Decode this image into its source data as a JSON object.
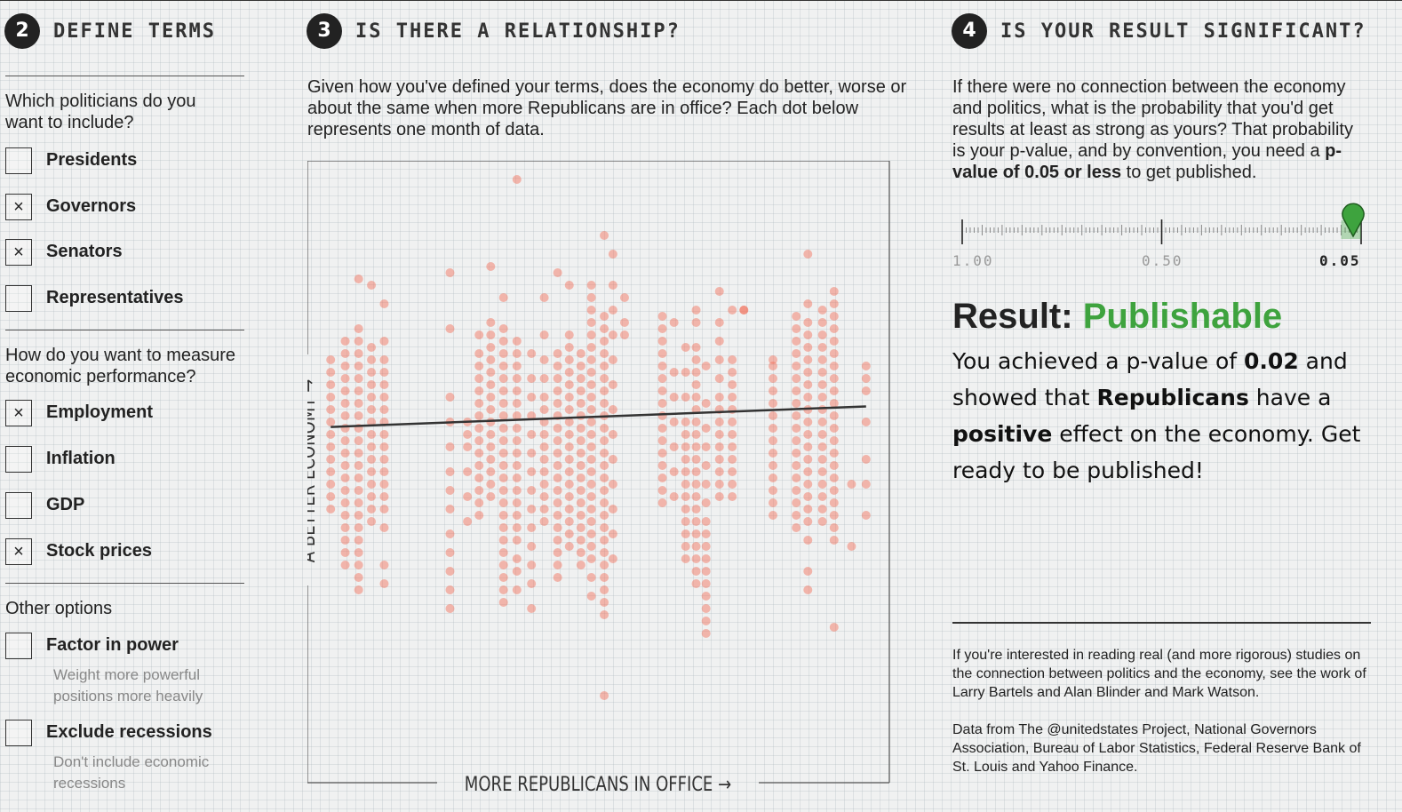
{
  "section2": {
    "number": "2",
    "title": "DEFINE TERMS",
    "q_politicians": "Which politicians do you want to include?",
    "politicians": [
      {
        "label": "Presidents",
        "checked": false
      },
      {
        "label": "Governors",
        "checked": true
      },
      {
        "label": "Senators",
        "checked": true
      },
      {
        "label": "Representatives",
        "checked": false
      }
    ],
    "q_economy": "How do you want to measure economic performance?",
    "measures": [
      {
        "label": "Employment",
        "checked": true
      },
      {
        "label": "Inflation",
        "checked": false
      },
      {
        "label": "GDP",
        "checked": false
      },
      {
        "label": "Stock prices",
        "checked": true
      }
    ],
    "q_other": "Other options",
    "factor_power": {
      "label": "Factor in power",
      "checked": false,
      "desc": "Weight more powerful positions more heavily"
    },
    "exclude_recessions": {
      "label": "Exclude recessions",
      "checked": false,
      "desc": "Don't include economic recessions"
    },
    "check_mark": "×"
  },
  "section3": {
    "number": "3",
    "title": "IS THERE A RELATIONSHIP?",
    "intro": "Given how you've defined your terms, does the economy do better, worse or about the same when more Republicans are in office? Each dot below represents one month of data."
  },
  "section4": {
    "number": "4",
    "title": "IS YOUR RESULT SIGNIFICANT?",
    "intro_before": "If there were no connection between the economy and politics, what is the probability that you'd get results at least as strong as yours? That probability is your p-value, and by convention, you need a ",
    "intro_bold": "p-value of 0.05 or less",
    "intro_after": " to get published.",
    "scale_labels": [
      "1.00",
      "0.50",
      "0.05"
    ],
    "p_value": 0.02,
    "result_prefix": "Result: ",
    "result_word": "Publishable",
    "body_1": "You achieved a p-value of ",
    "body_pval": "0.02",
    "body_2": " and showed that ",
    "body_party": "Republicans",
    "body_3": " have a ",
    "body_effect": "positive",
    "body_4": " effect on the economy. Get ready to be published!",
    "note": "If you're interested in reading real (and more rigorous) studies on the connection between politics and the economy, see the work of Larry Bartels and Alan Blinder and Mark Watson.",
    "sources": "Data from The @unitedstates Project, National Governors Association, Bureau of Labor Statistics, Federal Reserve Bank of St. Louis and Yahoo Finance."
  },
  "colors": {
    "dot": "#f26b55",
    "accent_green": "#3ea33e",
    "text": "#222222"
  },
  "chart_data": {
    "type": "scatter",
    "xlabel": "MORE REPUBLICANS IN OFFICE →",
    "ylabel": "A BETTER ECONOMY →",
    "xlim": [
      0,
      100
    ],
    "ylim": [
      0,
      100
    ],
    "trend": {
      "x": [
        4,
        96
      ],
      "y": [
        57.2,
        60.5
      ]
    },
    "columns": [
      {
        "x": 4,
        "y": [
          68,
          66,
          64,
          62,
          60,
          58,
          56,
          54,
          52,
          50,
          48,
          46,
          44
        ]
      },
      {
        "x": 6.5,
        "y": [
          71,
          69,
          67,
          65,
          63,
          61,
          59,
          57,
          55,
          53,
          51,
          49,
          47,
          45,
          43,
          41,
          39,
          37,
          35
        ]
      },
      {
        "x": 8.8,
        "y": [
          81,
          73,
          71,
          69,
          67,
          65,
          63,
          61,
          59,
          57,
          55,
          53,
          51,
          49,
          47,
          45,
          43,
          41,
          39,
          37,
          35,
          33,
          31
        ]
      },
      {
        "x": 11,
        "y": [
          80,
          70,
          68,
          66,
          64,
          62,
          60,
          58,
          56,
          54,
          52,
          50,
          48,
          46,
          44,
          42
        ]
      },
      {
        "x": 13.2,
        "y": [
          77,
          71,
          68,
          66,
          64,
          62,
          60,
          58,
          56,
          54,
          52,
          50,
          48,
          46,
          44,
          41,
          35,
          32
        ]
      },
      {
        "x": 24.5,
        "y": [
          82,
          73,
          62,
          58,
          54,
          50,
          47,
          44,
          40,
          37,
          34,
          31,
          28
        ]
      },
      {
        "x": 27.5,
        "y": [
          58,
          56,
          54,
          50,
          46,
          42
        ]
      },
      {
        "x": 29.5,
        "y": [
          72,
          69,
          67,
          65,
          63,
          61,
          59,
          57,
          55,
          53,
          51,
          49,
          47,
          45,
          43
        ]
      },
      {
        "x": 31.5,
        "y": [
          83,
          74,
          72,
          70,
          68,
          66,
          64,
          62,
          60,
          58,
          56,
          54,
          52,
          50,
          48,
          46
        ]
      },
      {
        "x": 33.7,
        "y": [
          78,
          73,
          71,
          69,
          67,
          65,
          63,
          61,
          59,
          57,
          55,
          53,
          51,
          49,
          47,
          45,
          43,
          41,
          39,
          37,
          35,
          33,
          31,
          29
        ]
      },
      {
        "x": 36,
        "y": [
          97,
          71,
          69,
          67,
          65,
          63,
          61,
          59,
          57,
          55,
          53,
          51,
          49,
          47,
          45,
          43,
          41,
          39,
          36,
          34,
          31
        ]
      },
      {
        "x": 38.5,
        "y": [
          69,
          65,
          62,
          59,
          56,
          53,
          50,
          47,
          44,
          41,
          38,
          35,
          32,
          28
        ]
      },
      {
        "x": 40.7,
        "y": [
          78,
          72,
          68,
          65,
          62,
          60,
          58,
          56,
          54,
          52,
          50,
          48,
          46,
          44,
          42
        ]
      },
      {
        "x": 43,
        "y": [
          82,
          69,
          67,
          65,
          63,
          61,
          59,
          57,
          55,
          53,
          51,
          49,
          47,
          45,
          43,
          41,
          39,
          37,
          35,
          33
        ]
      },
      {
        "x": 45,
        "y": [
          80,
          72,
          70,
          68,
          66,
          64,
          62,
          60,
          58,
          56,
          54,
          52,
          50,
          48,
          46,
          44,
          42,
          40,
          38
        ]
      },
      {
        "x": 47,
        "y": [
          69,
          67,
          65,
          63,
          61,
          59,
          57,
          55,
          53,
          51,
          49,
          47,
          45,
          43,
          41,
          39,
          37,
          35
        ]
      },
      {
        "x": 48.8,
        "y": [
          80,
          78,
          76,
          74,
          72,
          70,
          68,
          66,
          64,
          62,
          60,
          58,
          56,
          54,
          52,
          50,
          48,
          46,
          44,
          42,
          40,
          38,
          36,
          33,
          30
        ]
      },
      {
        "x": 51,
        "y": [
          88,
          75,
          73,
          71,
          69,
          67,
          65,
          63,
          61,
          59,
          57,
          55,
          53,
          51,
          49,
          47,
          45,
          43,
          41,
          39,
          37,
          35,
          33,
          31,
          29,
          27,
          14
        ]
      },
      {
        "x": 52.5,
        "y": [
          80,
          76,
          72,
          68,
          64,
          60,
          56,
          52,
          48,
          44,
          40,
          36
        ]
      },
      {
        "x": 54.5,
        "y": [
          78,
          74,
          72
        ]
      },
      {
        "x": 61,
        "y": [
          75,
          73,
          71,
          69,
          67,
          65,
          63,
          61,
          59,
          57,
          55,
          53,
          51,
          49,
          47,
          45
        ]
      },
      {
        "x": 63,
        "y": [
          74,
          66,
          62,
          58,
          54,
          50,
          46
        ]
      },
      {
        "x": 65,
        "y": [
          70,
          66,
          62,
          58,
          56,
          54,
          52,
          50,
          48,
          46,
          44,
          42,
          40,
          38,
          36
        ]
      },
      {
        "x": 66.8,
        "y": [
          76,
          74,
          70,
          68,
          66,
          64,
          62,
          60,
          58,
          56,
          54,
          52,
          50,
          48,
          46,
          44,
          42,
          40,
          38,
          36,
          34,
          32
        ]
      },
      {
        "x": 68.5,
        "y": [
          67,
          61,
          57,
          54,
          51,
          48,
          45,
          42,
          40,
          38,
          36,
          34,
          32,
          30,
          28,
          26,
          24
        ]
      },
      {
        "x": 70.8,
        "y": [
          79,
          74,
          71,
          68,
          65,
          62,
          60,
          58,
          56,
          54,
          52,
          50,
          48,
          46
        ]
      },
      {
        "x": 73,
        "y": [
          76,
          68,
          66,
          64,
          62,
          60,
          58,
          56,
          54,
          52,
          50,
          48,
          46
        ]
      },
      {
        "x": 75,
        "y": [
          76,
          76
        ]
      },
      {
        "x": 80,
        "y": [
          68,
          67,
          65,
          63,
          61,
          59,
          57,
          55,
          53,
          51,
          49,
          47,
          45,
          43
        ]
      },
      {
        "x": 84,
        "y": [
          75,
          73,
          71,
          69,
          67,
          65,
          63,
          61,
          59,
          57,
          55,
          53,
          51,
          49,
          47,
          45,
          43,
          41
        ]
      },
      {
        "x": 86,
        "y": [
          85,
          77,
          74,
          72,
          70,
          68,
          66,
          64,
          62,
          60,
          58,
          56,
          54,
          52,
          50,
          48,
          46,
          44,
          42,
          39,
          34,
          31
        ]
      },
      {
        "x": 88.5,
        "y": [
          76,
          74,
          72,
          70,
          68,
          66,
          64,
          62,
          60,
          58,
          56,
          54,
          52,
          50,
          48,
          46,
          44,
          42
        ]
      },
      {
        "x": 90.5,
        "y": [
          79,
          77,
          75,
          73,
          71,
          69,
          67,
          65,
          63,
          61,
          59,
          57,
          55,
          53,
          51,
          49,
          47,
          45,
          43,
          41,
          39
        ]
      },
      {
        "x": 93.5,
        "y": [
          48,
          38
        ]
      },
      {
        "x": 96,
        "y": [
          67,
          65,
          63,
          58,
          52,
          48,
          43
        ]
      },
      {
        "x": 90.5,
        "y": [
          25
        ]
      },
      {
        "x": 52.5,
        "y": [
          85
        ]
      }
    ]
  }
}
